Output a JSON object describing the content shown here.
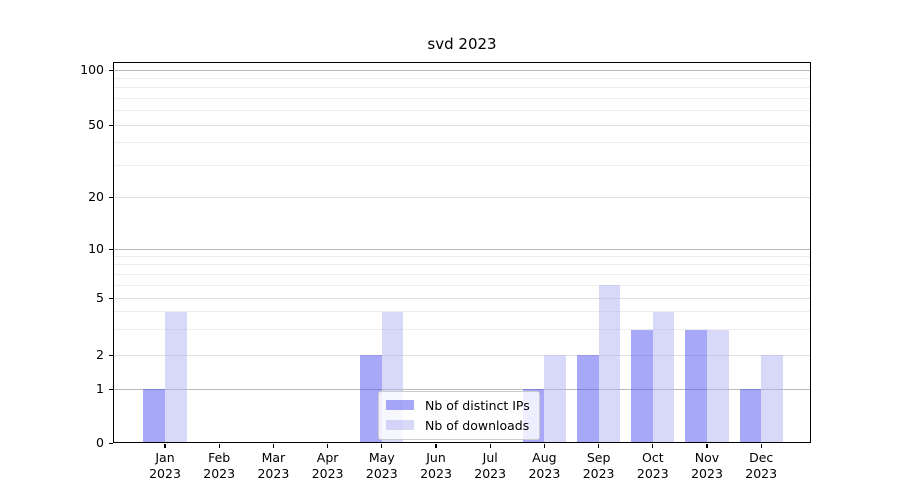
{
  "chart_data": {
    "type": "bar",
    "title": "svd 2023",
    "xlabel": "",
    "ylabel": "",
    "yscale": "symlog",
    "ylim": [
      0,
      130
    ],
    "grid": true,
    "categories": [
      "Jan",
      "Feb",
      "Mar",
      "Apr",
      "May",
      "Jun",
      "Jul",
      "Aug",
      "Sep",
      "Oct",
      "Nov",
      "Dec"
    ],
    "x_tick_second_line": "2023",
    "yticks": [
      0,
      1,
      2,
      5,
      10,
      20,
      50,
      100
    ],
    "y_gridlines": {
      "major": [
        1,
        10,
        100
      ],
      "mid": [
        2,
        5,
        20,
        50
      ],
      "minor": [
        3,
        4,
        6,
        7,
        8,
        9,
        30,
        40,
        60,
        70,
        80,
        90
      ]
    },
    "grid_colors": {
      "major": "#b9b9b9",
      "mid": "#e0e0e0",
      "minor": "#ededed"
    },
    "series": [
      {
        "key": "distinct-ips",
        "name": "Nb of distinct IPs",
        "color": "#a8a8f8",
        "values": [
          1,
          0,
          0,
          0,
          2,
          0,
          0,
          1,
          2,
          3,
          3,
          1
        ]
      },
      {
        "key": "downloads",
        "name": "Nb of downloads",
        "color": "#d8d8f9",
        "values": [
          4,
          0,
          0,
          0,
          4,
          0,
          0,
          2,
          6,
          4,
          3,
          2
        ]
      }
    ],
    "legend": {
      "position": "lower center"
    }
  }
}
